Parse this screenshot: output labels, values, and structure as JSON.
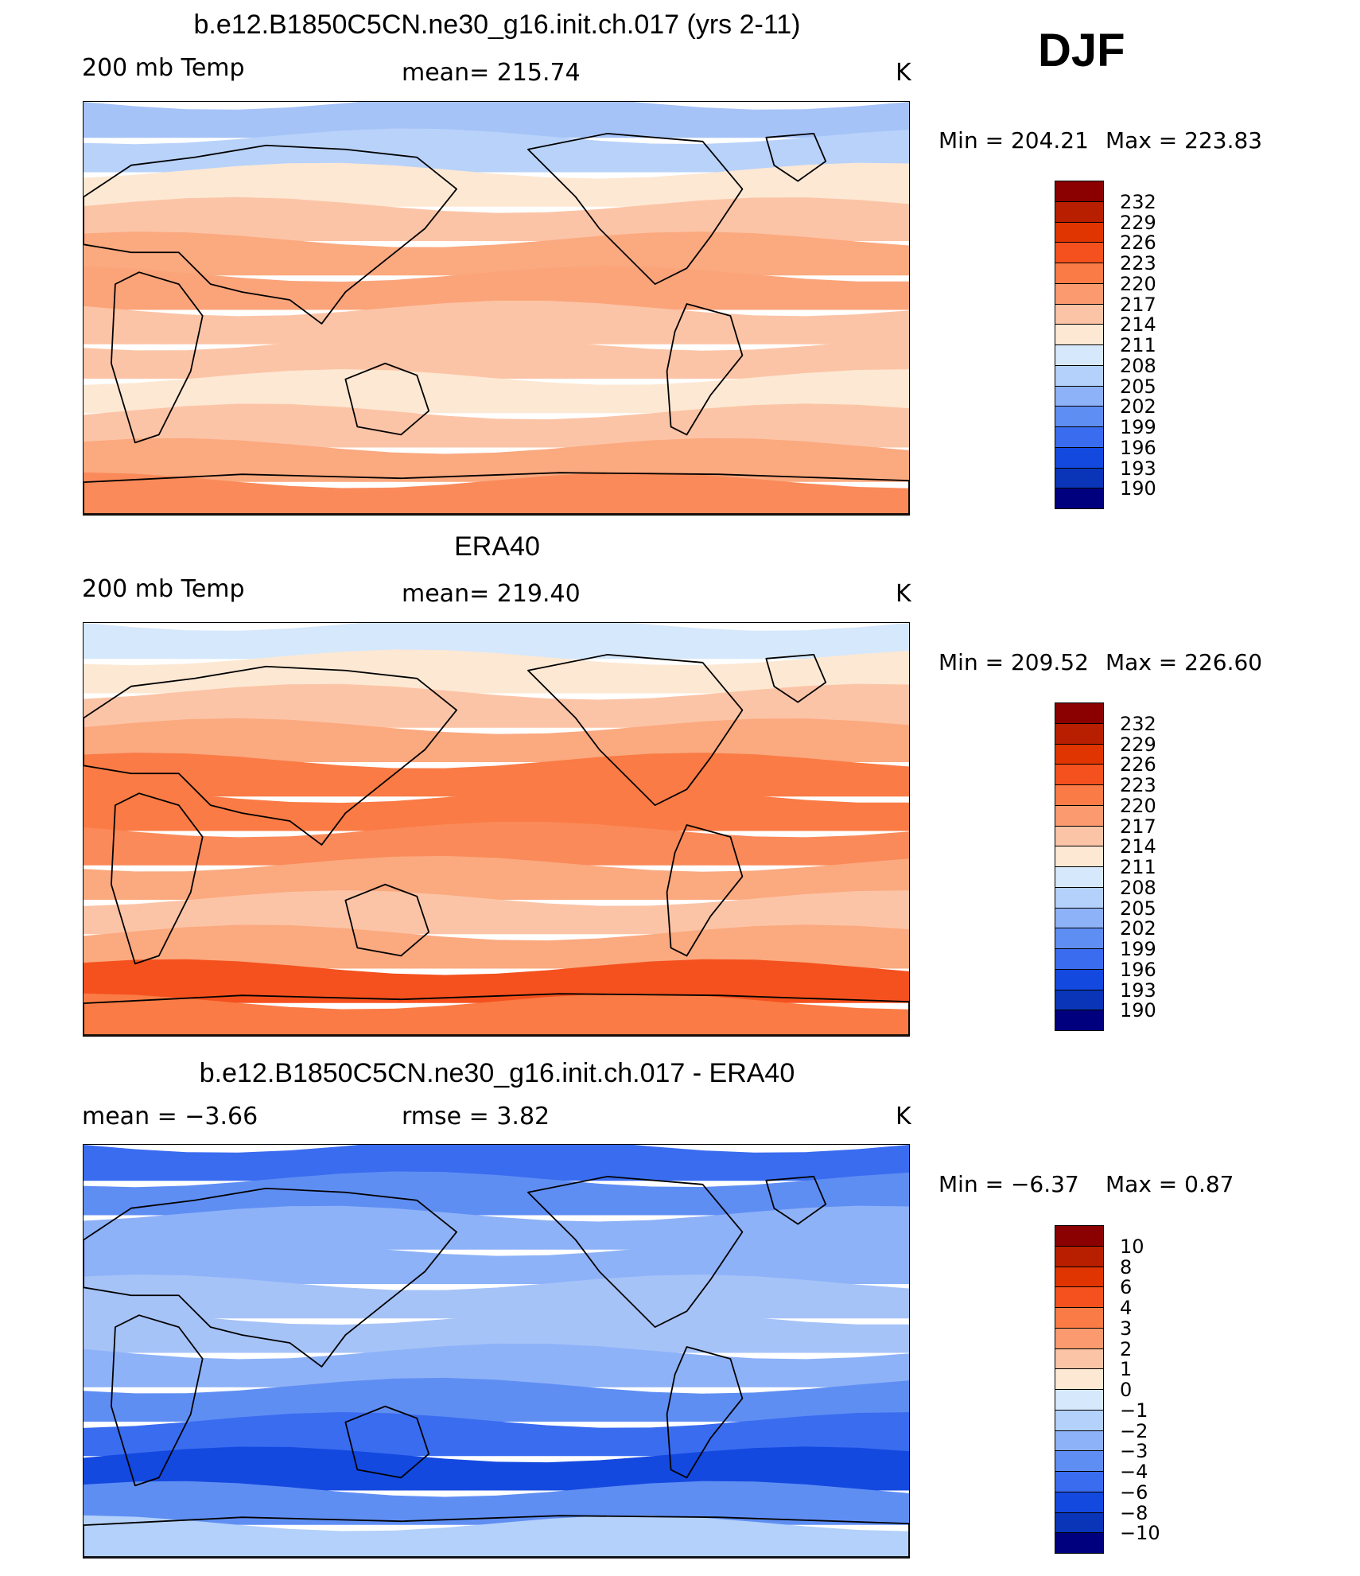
{
  "season": "DJF",
  "chart_data": [
    {
      "type": "heatmap",
      "title": "b.e12.B1850C5CN.ne30_g16.init.ch.017 (yrs 2-11)",
      "left_label": "200 mb Temp",
      "center_label": "mean=  215.74",
      "units": "K",
      "stats": {
        "min_label": "Min  =  204.21",
        "max_label": "Max  =  223.83",
        "min": 204.21,
        "max": 223.83,
        "mean": 215.74
      },
      "colorbar": {
        "levels": [
          "232",
          "229",
          "226",
          "223",
          "220",
          "217",
          "214",
          "211",
          "208",
          "205",
          "202",
          "199",
          "196",
          "193",
          "190"
        ],
        "colors": [
          "#8b0000",
          "#b81e00",
          "#e03500",
          "#f4511e",
          "#fa7b45",
          "#fb9a6e",
          "#fcc4a6",
          "#fde8d3",
          "#d6e8fb",
          "#b3d1fa",
          "#8eb2f8",
          "#5f8ef3",
          "#3a6cf0",
          "#1449e0",
          "#0a35b8",
          "#00007f"
        ]
      },
      "bands": [
        "#a6c3f8",
        "#b8d2fa",
        "#fde8d3",
        "#fcc4a6",
        "#fba97f",
        "#fba47a",
        "#fcc4a6",
        "#fcc4a6",
        "#fde8d3",
        "#fcc4a6",
        "#fba97f",
        "#fa8a5a"
      ]
    },
    {
      "type": "heatmap",
      "title": "ERA40",
      "left_label": "200 mb Temp",
      "center_label": "mean=  219.40",
      "units": "K",
      "stats": {
        "min_label": "Min  =  209.52",
        "max_label": "Max  =  226.60",
        "min": 209.52,
        "max": 226.6,
        "mean": 219.4
      },
      "colorbar": {
        "levels": [
          "232",
          "229",
          "226",
          "223",
          "220",
          "217",
          "214",
          "211",
          "208",
          "205",
          "202",
          "199",
          "196",
          "193",
          "190"
        ],
        "colors": [
          "#8b0000",
          "#b81e00",
          "#e03500",
          "#f4511e",
          "#fa7b45",
          "#fb9a6e",
          "#fcc4a6",
          "#fde8d3",
          "#d6e8fb",
          "#b3d1fa",
          "#8eb2f8",
          "#5f8ef3",
          "#3a6cf0",
          "#1449e0",
          "#0a35b8",
          "#00007f"
        ]
      },
      "bands": [
        "#d6e8fb",
        "#fde8d3",
        "#fcc4a6",
        "#fba97f",
        "#fa7b45",
        "#fa7b45",
        "#fa8a5a",
        "#fba97f",
        "#fcc4a6",
        "#fba97f",
        "#f4511e",
        "#fa7b45"
      ]
    },
    {
      "type": "heatmap",
      "title": "b.e12.B1850C5CN.ne30_g16.init.ch.017 - ERA40",
      "left_label": "mean =    −3.66",
      "center_label": "rmse =     3.82",
      "units": "K",
      "stats": {
        "min_label": "Min  =    −6.37",
        "max_label": "Max  =     0.87",
        "min": -6.37,
        "max": 0.87,
        "mean": -3.66,
        "rmse": 3.82
      },
      "colorbar": {
        "levels": [
          "10",
          "8",
          "6",
          "4",
          "3",
          "2",
          "1",
          "0",
          "−1",
          "−2",
          "−3",
          "−4",
          "−6",
          "−8",
          "−10"
        ],
        "colors": [
          "#8b0000",
          "#b81e00",
          "#e03500",
          "#f4511e",
          "#fa7b45",
          "#fb9a6e",
          "#fcc4a6",
          "#fde8d3",
          "#d6e8fb",
          "#b3d1fa",
          "#8eb2f8",
          "#5f8ef3",
          "#3a6cf0",
          "#1449e0",
          "#0a35b8",
          "#00007f"
        ]
      },
      "bands": [
        "#3a6cf0",
        "#5f8ef3",
        "#8eb2f8",
        "#8eb2f8",
        "#a6c3f8",
        "#a6c3f8",
        "#8eb2f8",
        "#5f8ef3",
        "#3a6cf0",
        "#1449e0",
        "#5f8ef3",
        "#b3d1fa"
      ]
    }
  ]
}
